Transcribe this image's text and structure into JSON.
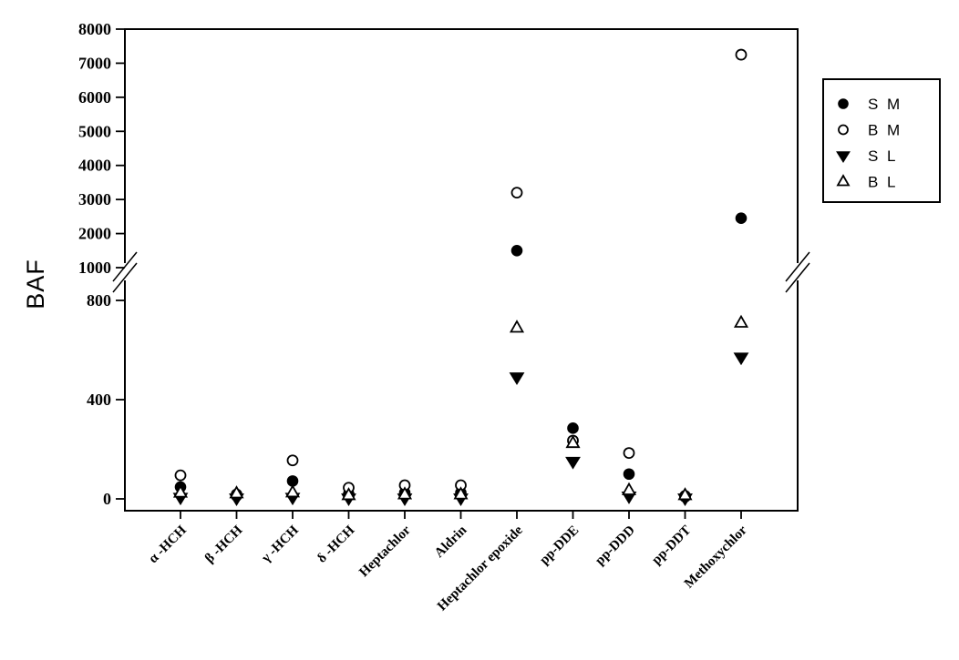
{
  "chart_data": {
    "type": "scatter",
    "title": "",
    "xlabel": "",
    "ylabel": "BAF",
    "categories": [
      "α -HCH",
      "β -HCH",
      "γ -HCH",
      "δ -HCH",
      "Heptachlor",
      "Aldrin",
      "Heptachlor epoxide",
      "pp-DDE",
      "pp-DDD",
      "pp-DDT",
      "Methoxychlor"
    ],
    "series": [
      {
        "name": "S M",
        "marker": "filled-circle",
        "values": [
          48,
          12,
          72,
          20,
          25,
          25,
          1500,
          285,
          100,
          8,
          2450
        ]
      },
      {
        "name": "B M",
        "marker": "open-circle",
        "values": [
          95,
          18,
          155,
          45,
          55,
          55,
          3200,
          235,
          185,
          12,
          7250
        ]
      },
      {
        "name": "S L",
        "marker": "filled-triangle-down",
        "values": [
          5,
          2,
          5,
          2,
          2,
          2,
          490,
          150,
          10,
          2,
          570
        ]
      },
      {
        "name": "B L",
        "marker": "open-triangle-up",
        "values": [
          25,
          22,
          26,
          15,
          18,
          18,
          690,
          225,
          35,
          15,
          710
        ]
      }
    ],
    "y_axis": {
      "broken": true,
      "lower_segment": {
        "range": [
          0,
          900
        ],
        "ticks": [
          0,
          400,
          800
        ]
      },
      "upper_segment": {
        "range": [
          1000,
          8000
        ],
        "ticks": [
          1000,
          2000,
          3000,
          4000,
          5000,
          6000,
          7000,
          8000
        ]
      }
    },
    "x_axis": {
      "grid": false
    },
    "legend_position": "right",
    "colors": {
      "foreground": "#000000",
      "background": "#ffffff"
    }
  }
}
